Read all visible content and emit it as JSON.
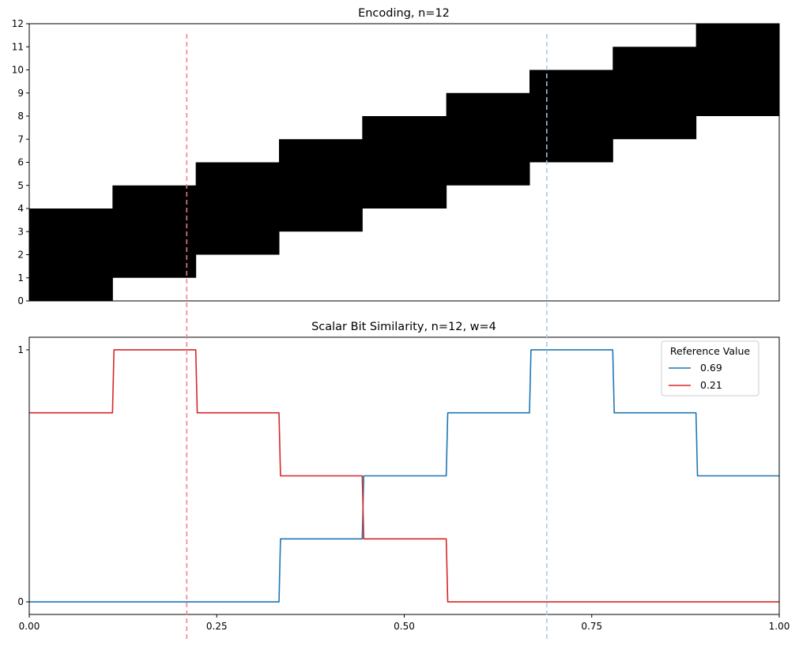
{
  "chart_data": [
    {
      "type": "heatmap",
      "title": "Encoding, n=12",
      "n": 12,
      "w": 4,
      "xlim": [
        0,
        1
      ],
      "ylim": [
        0,
        12
      ],
      "yticks": [
        "0",
        "1",
        "2",
        "3",
        "4",
        "5",
        "6",
        "7",
        "8",
        "9",
        "10",
        "11",
        "12"
      ],
      "active_bits": [
        {
          "x_start": 0.0,
          "x_end": 0.111,
          "bit_start": 0,
          "bit_end": 4
        },
        {
          "x_start": 0.111,
          "x_end": 0.222,
          "bit_start": 1,
          "bit_end": 5
        },
        {
          "x_start": 0.222,
          "x_end": 0.333,
          "bit_start": 2,
          "bit_end": 6
        },
        {
          "x_start": 0.333,
          "x_end": 0.444,
          "bit_start": 3,
          "bit_end": 7
        },
        {
          "x_start": 0.444,
          "x_end": 0.556,
          "bit_start": 4,
          "bit_end": 8
        },
        {
          "x_start": 0.556,
          "x_end": 0.667,
          "bit_start": 5,
          "bit_end": 9
        },
        {
          "x_start": 0.667,
          "x_end": 0.778,
          "bit_start": 6,
          "bit_end": 10
        },
        {
          "x_start": 0.778,
          "x_end": 0.889,
          "bit_start": 7,
          "bit_end": 11
        },
        {
          "x_start": 0.889,
          "x_end": 1.0,
          "bit_start": 8,
          "bit_end": 12
        }
      ],
      "fill_color": "#000000",
      "reference_lines": [
        {
          "x": 0.21,
          "color": "#f0808a"
        },
        {
          "x": 0.69,
          "color": "#a4c8e0"
        }
      ]
    },
    {
      "type": "line",
      "title": "Scalar Bit Similarity, n=12, w=4",
      "xlim": [
        0,
        1
      ],
      "ylim": [
        -0.05,
        1.05
      ],
      "xticks": [
        {
          "value": 0.0,
          "label": "0.00"
        },
        {
          "value": 0.25,
          "label": "0.25"
        },
        {
          "value": 0.5,
          "label": "0.50"
        },
        {
          "value": 0.75,
          "label": "0.75"
        },
        {
          "value": 1.0,
          "label": "1.00"
        }
      ],
      "yticks": [
        {
          "value": 0,
          "label": "0"
        },
        {
          "value": 1,
          "label": "1"
        }
      ],
      "legend": {
        "title": "Reference Value",
        "placement": "top-right"
      },
      "series": [
        {
          "name": "0.69",
          "color": "#1f77b4",
          "points": [
            [
              0.0,
              0
            ],
            [
              0.333,
              0
            ],
            [
              0.335,
              0.25
            ],
            [
              0.444,
              0.25
            ],
            [
              0.446,
              0.5
            ],
            [
              0.556,
              0.5
            ],
            [
              0.558,
              0.75
            ],
            [
              0.667,
              0.75
            ],
            [
              0.669,
              1
            ],
            [
              0.778,
              1
            ],
            [
              0.78,
              0.75
            ],
            [
              0.889,
              0.75
            ],
            [
              0.891,
              0.5
            ],
            [
              1.0,
              0.5
            ]
          ]
        },
        {
          "name": "0.21",
          "color": "#d62728",
          "points": [
            [
              0.0,
              0.75
            ],
            [
              0.111,
              0.75
            ],
            [
              0.113,
              1
            ],
            [
              0.222,
              1
            ],
            [
              0.224,
              0.75
            ],
            [
              0.333,
              0.75
            ],
            [
              0.335,
              0.5
            ],
            [
              0.444,
              0.5
            ],
            [
              0.446,
              0.25
            ],
            [
              0.556,
              0.25
            ],
            [
              0.558,
              0
            ],
            [
              1.0,
              0
            ]
          ]
        }
      ]
    }
  ]
}
